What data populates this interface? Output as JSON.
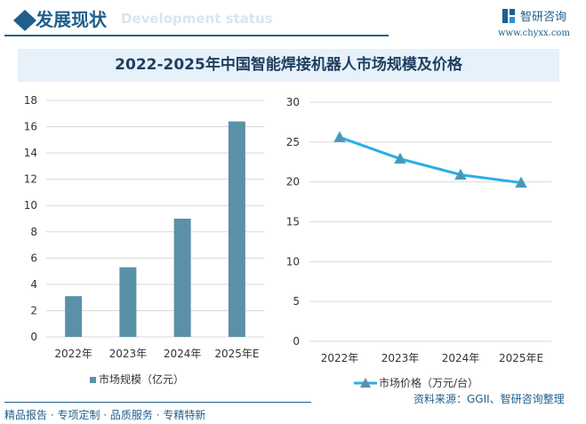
{
  "header": {
    "title": "发展现状",
    "subtitle": "Development status",
    "logo_text": "智研咨询",
    "logo_url": "www.chyxx.com"
  },
  "chart_title": "2022-2025年中国智能焊接机器人市场规模及价格",
  "footer": {
    "left": "精品报告 · 专项定制 · 品质服务 · 专精特新",
    "source": "资料来源：GGII、智研咨询整理"
  },
  "chart_data": [
    {
      "type": "bar",
      "categories": [
        "2022年",
        "2023年",
        "2024年",
        "2025年E"
      ],
      "series": [
        {
          "name": "市场规模（亿元）",
          "values": [
            3.1,
            5.3,
            9.0,
            16.4
          ]
        }
      ],
      "ylim": [
        0,
        18
      ],
      "yticks": [
        0,
        2,
        4,
        6,
        8,
        10,
        12,
        14,
        16,
        18
      ],
      "grid": true,
      "legend": "bottom",
      "color": "#5b91a8"
    },
    {
      "type": "line",
      "categories": [
        "2022年",
        "2023年",
        "2024年",
        "2025年E"
      ],
      "series": [
        {
          "name": "市场价格（万元/台）",
          "values": [
            25.6,
            22.9,
            20.9,
            19.9
          ]
        }
      ],
      "ylim": [
        0,
        30
      ],
      "yticks": [
        0,
        5,
        10,
        15,
        20,
        25,
        30
      ],
      "grid": true,
      "legend": "bottom",
      "color": "#29aee6",
      "marker": "triangle",
      "marker_color": "#5b91a8"
    }
  ]
}
